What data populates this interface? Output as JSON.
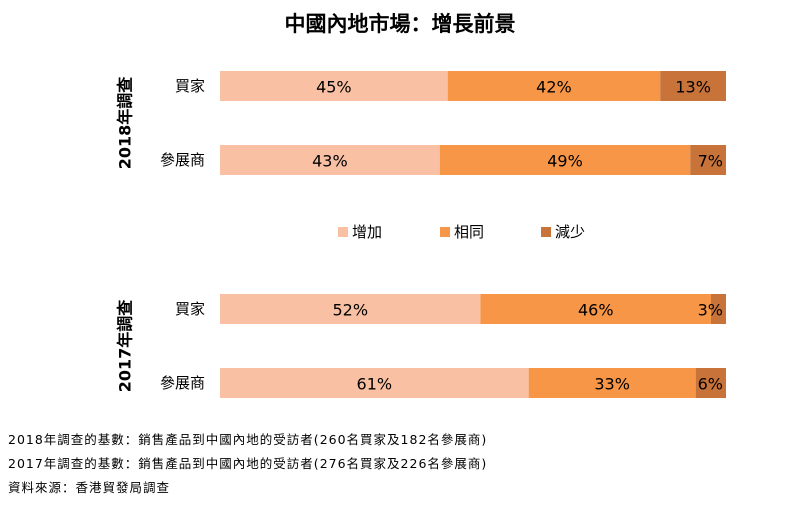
{
  "chart_data": {
    "type": "stacked-bar-horizontal",
    "title": "中國內地市場：增長前景",
    "legend": [
      "增加",
      "相同",
      "減少"
    ],
    "colors": [
      "#f9c0a3",
      "#f79646",
      "#c8733a"
    ],
    "xlim": [
      0,
      100
    ],
    "groups": [
      {
        "label": "2018年調查",
        "rows": [
          {
            "category": "買家",
            "values": [
              45,
              42,
              13
            ],
            "labels": [
              "45%",
              "42%",
              "13%"
            ]
          },
          {
            "category": "參展商",
            "values": [
              43,
              49,
              7
            ],
            "labels": [
              "43%",
              "49%",
              "7%"
            ]
          }
        ]
      },
      {
        "label": "2017年調查",
        "rows": [
          {
            "category": "買家",
            "values": [
              52,
              46,
              3
            ],
            "labels": [
              "52%",
              "46%",
              "3%"
            ]
          },
          {
            "category": "參展商",
            "values": [
              61,
              33,
              6
            ],
            "labels": [
              "61%",
              "33%",
              "6%"
            ]
          }
        ]
      }
    ]
  },
  "footnotes": [
    "2018年調查的基數：銷售產品到中國內地的受訪者(260名買家及182名參展商)",
    "2017年調查的基數：銷售產品到中國內地的受訪者(276名買家及226名參展商)",
    "資料來源：香港貿發局調查"
  ]
}
